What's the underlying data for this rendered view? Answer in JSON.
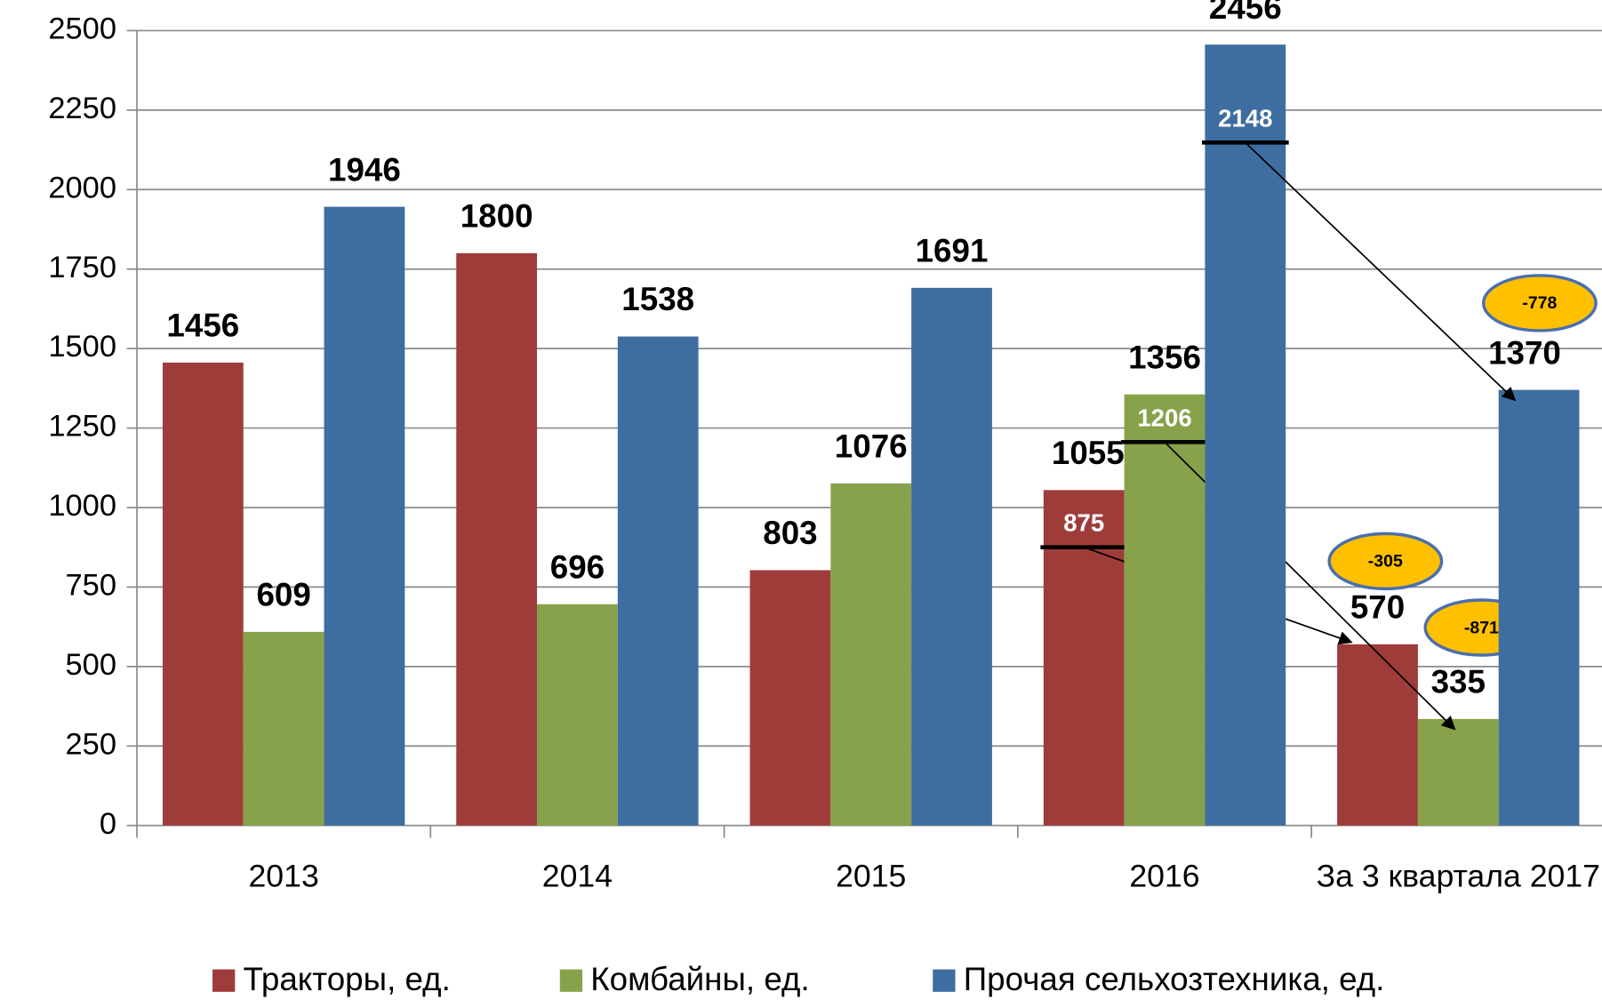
{
  "chart_data": {
    "type": "bar",
    "categories": [
      "2013",
      "2014",
      "2015",
      "2016",
      "За 3 квартала 2017"
    ],
    "series": [
      {
        "name": "Тракторы, ед.",
        "color": "#9e3c3a",
        "values": [
          1456,
          1800,
          803,
          1055,
          570
        ],
        "marker": 875,
        "change": -305
      },
      {
        "name": "Комбайны, ед.",
        "color": "#87a24b",
        "values": [
          609,
          696,
          1076,
          1356,
          335
        ],
        "marker": 1206,
        "change": -871
      },
      {
        "name": "Прочая сельхозтехника, ед.",
        "color": "#3e6ea1",
        "values": [
          1946,
          1538,
          1691,
          2456,
          1370
        ],
        "marker": 2148,
        "change": -778
      }
    ],
    "ylim": [
      0,
      2500
    ],
    "yticks": [
      0,
      250,
      500,
      750,
      1000,
      1250,
      1500,
      1750,
      2000,
      2250,
      2500
    ],
    "grid": true,
    "legend": "bottom"
  }
}
